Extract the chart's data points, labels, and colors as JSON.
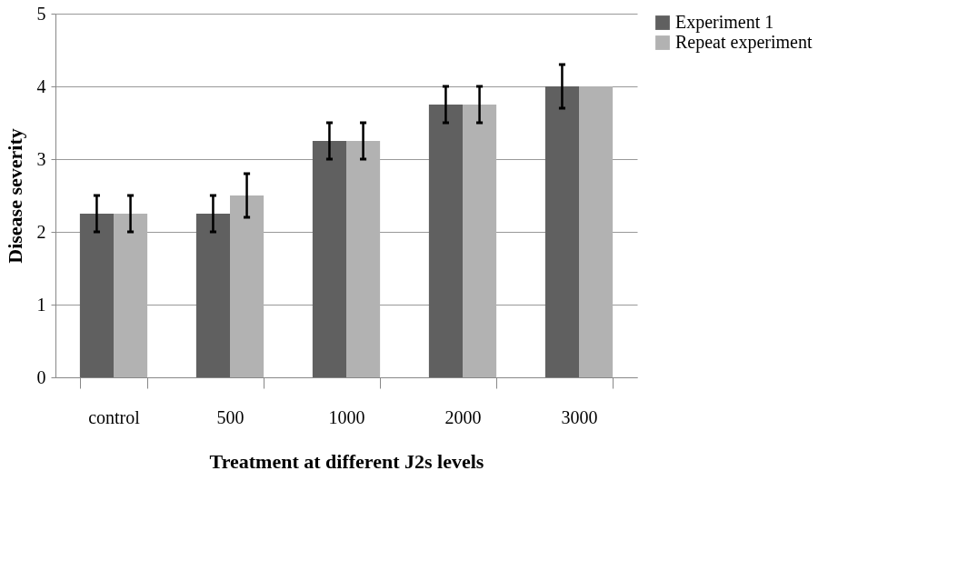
{
  "chart_data": {
    "type": "bar",
    "xlabel": "Treatment at different J2s levels",
    "ylabel": "Disease severity",
    "categories": [
      "control",
      "500",
      "1000",
      "2000",
      "3000"
    ],
    "series": [
      {
        "name": "Experiment 1",
        "color": "#606060",
        "values": [
          2.25,
          2.25,
          3.25,
          3.75,
          4
        ],
        "errors": [
          0.25,
          0.25,
          0.25,
          0.25,
          0.3
        ]
      },
      {
        "name": "Repeat experiment",
        "color": "#b2b2b2",
        "values": [
          2.25,
          2.5,
          3.25,
          3.75,
          4
        ],
        "errors": [
          0.25,
          0.3,
          0.25,
          0.25,
          null
        ]
      }
    ],
    "ylim": [
      0,
      5
    ],
    "yticks": [
      0,
      1,
      2,
      3,
      4,
      5
    ],
    "grid": "y",
    "legend": "right"
  }
}
